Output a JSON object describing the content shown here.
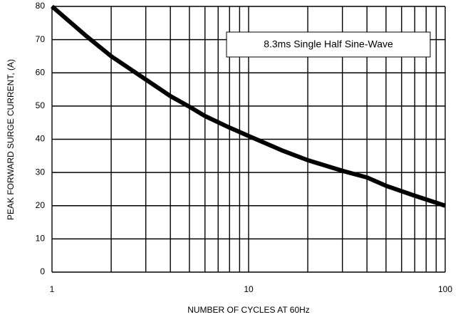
{
  "chart_data": {
    "type": "line",
    "xscale": "log",
    "x_label": "NUMBER OF CYCLES AT 60Hz",
    "y_label": "PEAK FORWARD SURGE CURRENT, (A)",
    "annotation": "8.3ms Single Half Sine-Wave",
    "x": [
      1,
      1.5,
      2,
      3,
      4,
      5,
      6,
      8,
      10,
      15,
      20,
      30,
      40,
      50,
      70,
      100
    ],
    "series": [
      {
        "name": "surge",
        "color": "#000000",
        "values": [
          80,
          71,
          65,
          58,
          53,
          49.8,
          47,
          43.5,
          41,
          36.5,
          33.7,
          30.5,
          28.5,
          26,
          23,
          20
        ]
      }
    ],
    "xlim": [
      1,
      100
    ],
    "ylim": [
      0,
      80
    ],
    "xticks": [
      1,
      10,
      100
    ],
    "x_grid_lines": [
      1,
      2,
      3,
      4,
      5,
      6,
      7,
      8,
      9,
      10,
      20,
      30,
      40,
      50,
      60,
      70,
      80,
      90,
      100
    ],
    "yticks": [
      0,
      10,
      20,
      30,
      40,
      50,
      60,
      70,
      80
    ],
    "grid": true
  }
}
